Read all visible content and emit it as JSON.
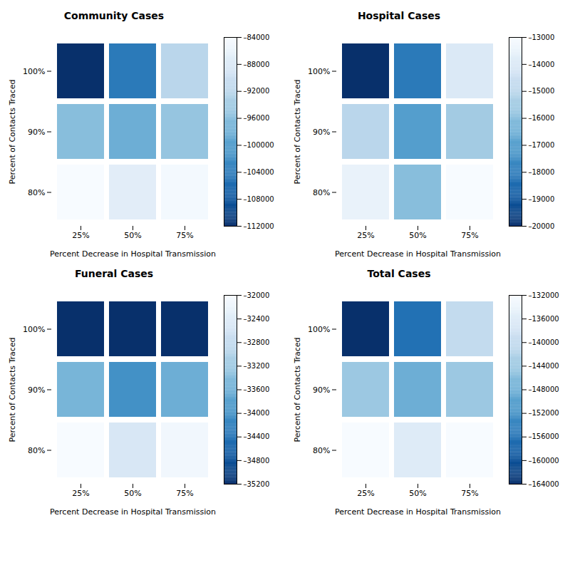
{
  "chart_data": [
    {
      "type": "heatmap",
      "title": "Community Cases",
      "x_label": "Percent Decrease in Hospital Transmission",
      "y_label": "Percent of Contacts Traced",
      "x": [
        "25%",
        "50%",
        "75%"
      ],
      "y": [
        "100%",
        "90%",
        "80%"
      ],
      "values": [
        [
          -112000,
          -104000,
          -92000
        ],
        [
          -96000,
          -98000,
          -95000
        ],
        [
          -84000,
          -87000,
          -84500
        ]
      ],
      "color": "Blues_r",
      "color_range": [
        -112000,
        -84000
      ],
      "color_ticks": [
        {
          "value": -112000,
          "label": "–112000"
        },
        {
          "value": -108000,
          "label": "–108000"
        },
        {
          "value": -104000,
          "label": "–104000"
        },
        {
          "value": -100000,
          "label": "–100000"
        },
        {
          "value": -96000,
          "label": "–96000"
        },
        {
          "value": -92000,
          "label": "–92000"
        },
        {
          "value": -88000,
          "label": "–88000"
        },
        {
          "value": -84000,
          "label": "–84000"
        }
      ]
    },
    {
      "type": "heatmap",
      "title": "Hospital Cases",
      "x_label": "Percent Decrease in Hospital Transmission",
      "y_label": "Percent of Contacts Traced",
      "x": [
        "25%",
        "50%",
        "75%"
      ],
      "y": [
        "100%",
        "90%",
        "80%"
      ],
      "values": [
        [
          -20000,
          -18000,
          -14000
        ],
        [
          -15000,
          -17000,
          -15500
        ],
        [
          -13500,
          -16000,
          -13000
        ]
      ],
      "color": "Blues_r",
      "color_range": [
        -20000,
        -13000
      ],
      "color_ticks": [
        {
          "value": -20000,
          "label": "–20000"
        },
        {
          "value": -19000,
          "label": "–19000"
        },
        {
          "value": -18000,
          "label": "–18000"
        },
        {
          "value": -17000,
          "label": "–17000"
        },
        {
          "value": -16000,
          "label": "–16000"
        },
        {
          "value": -15000,
          "label": "–15000"
        },
        {
          "value": -14000,
          "label": "–14000"
        },
        {
          "value": -13000,
          "label": "–13000"
        }
      ]
    },
    {
      "type": "heatmap",
      "title": "Funeral Cases",
      "x_label": "Percent Decrease in Hospital Transmission",
      "y_label": "Percent of Contacts Traced",
      "x": [
        "25%",
        "50%",
        "75%"
      ],
      "y": [
        "100%",
        "90%",
        "80%"
      ],
      "values": [
        [
          -35200,
          -35200,
          -35200
        ],
        [
          -33500,
          -34000,
          -33600
        ],
        [
          -32000,
          -32500,
          -32100
        ]
      ],
      "color": "Blues_r",
      "color_range": [
        -35200,
        -32000
      ],
      "color_ticks": [
        {
          "value": -35200,
          "label": "–35200"
        },
        {
          "value": -34800,
          "label": "–34800"
        },
        {
          "value": -34400,
          "label": "–34400"
        },
        {
          "value": -34000,
          "label": "–34000"
        },
        {
          "value": -33600,
          "label": "–33600"
        },
        {
          "value": -33200,
          "label": "–33200"
        },
        {
          "value": -32800,
          "label": "–32800"
        },
        {
          "value": -32400,
          "label": "–32400"
        },
        {
          "value": -32000,
          "label": "–32000"
        }
      ]
    },
    {
      "type": "heatmap",
      "title": "Total Cases",
      "x_label": "Percent Decrease in Hospital Transmission",
      "y_label": "Percent of Contacts Traced",
      "x": [
        "25%",
        "50%",
        "75%"
      ],
      "y": [
        "100%",
        "90%",
        "80%"
      ],
      "values": [
        [
          -164000,
          -156000,
          -140000
        ],
        [
          -144000,
          -148000,
          -144000
        ],
        [
          -132000,
          -136000,
          -132000
        ]
      ],
      "color": "Blues_r",
      "color_range": [
        -164000,
        -132000
      ],
      "color_ticks": [
        {
          "value": -164000,
          "label": "–164000"
        },
        {
          "value": -160000,
          "label": "–160000"
        },
        {
          "value": -156000,
          "label": "–156000"
        },
        {
          "value": -152000,
          "label": "–152000"
        },
        {
          "value": -148000,
          "label": "–148000"
        },
        {
          "value": -144000,
          "label": "–144000"
        },
        {
          "value": -140000,
          "label": "–140000"
        },
        {
          "value": -136000,
          "label": "–136000"
        },
        {
          "value": -132000,
          "label": "–132000"
        }
      ]
    }
  ]
}
